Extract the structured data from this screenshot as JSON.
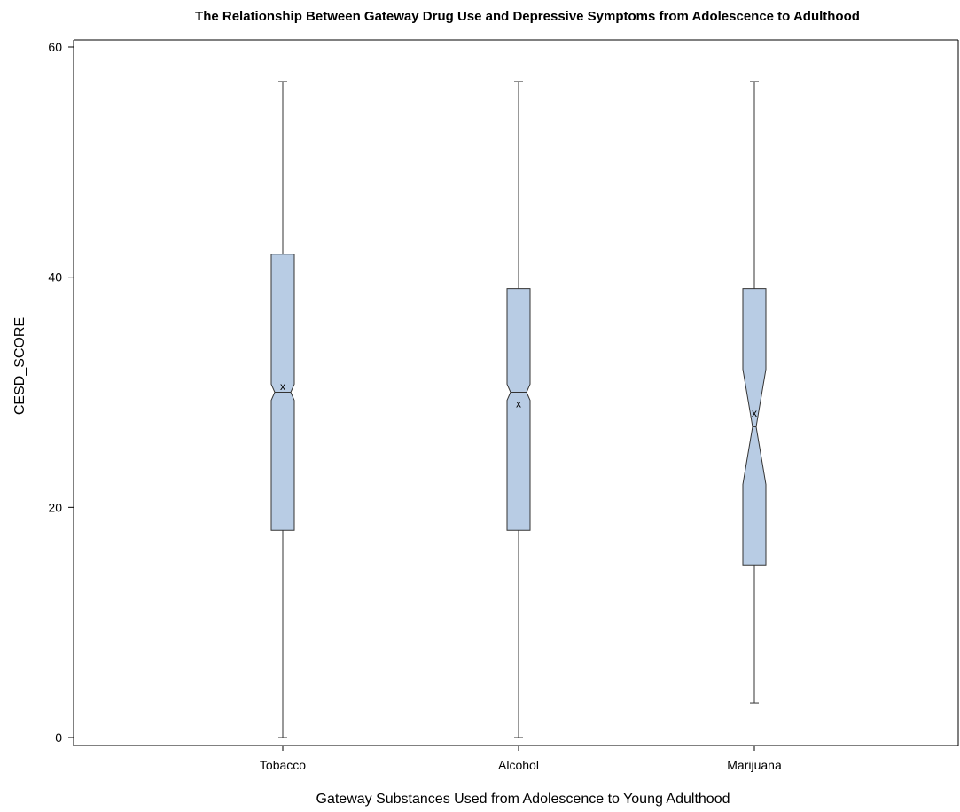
{
  "chart_data": {
    "type": "box",
    "title": "The Relationship Between Gateway Drug Use and Depressive Symptoms from Adolescence to Adulthood",
    "xlabel": "Gateway Substances Used from Adolescence to Young Adulthood",
    "ylabel": "CESD_SCORE",
    "ylim": [
      0,
      60
    ],
    "yticks": [
      0,
      20,
      40,
      60
    ],
    "notched": true,
    "grid": false,
    "box_color": "#b8cce4",
    "mean_symbol": "x",
    "categories": [
      "Tobacco",
      "Alcohol",
      "Marijuana"
    ],
    "boxes": [
      {
        "category": "Tobacco",
        "min": 0,
        "q1": 18,
        "median": 30,
        "q3": 42,
        "max": 57,
        "mean": 30.5,
        "notch_low": 29.3,
        "notch_high": 30.7
      },
      {
        "category": "Alcohol",
        "min": 0,
        "q1": 18,
        "median": 30,
        "q3": 39,
        "max": 57,
        "mean": 29.0,
        "notch_low": 29.3,
        "notch_high": 30.7
      },
      {
        "category": "Marijuana",
        "min": 3,
        "q1": 15,
        "median": 27,
        "q3": 39,
        "max": 57,
        "mean": 28.2,
        "notch_low": 22.0,
        "notch_high": 32.0
      }
    ]
  }
}
